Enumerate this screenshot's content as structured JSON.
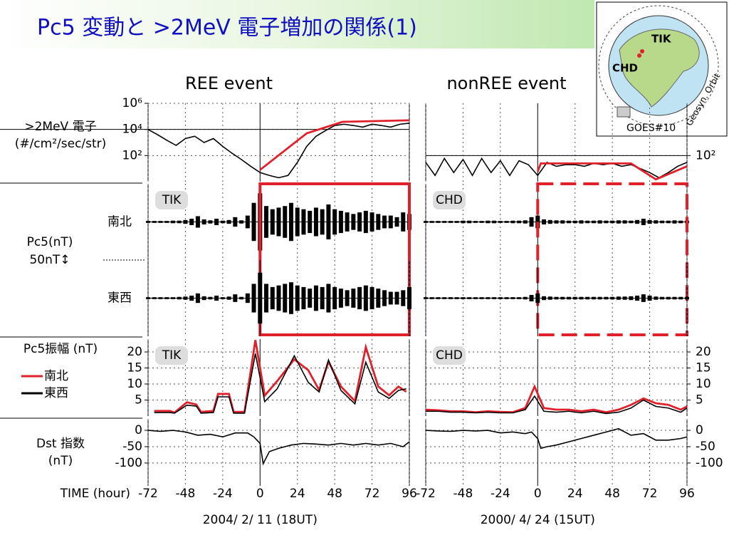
{
  "title": "Pc5 変動と >2MeV 電子増加の関係(1)",
  "pc5_label": [
    "Pc5(nT)",
    "50nT↕"
  ],
  "globe": {
    "stations": [
      "TIK",
      "CHD"
    ],
    "orbit": "Geosyn. Orbit",
    "satellite": "GOES#10"
  },
  "chart_data": [
    {
      "type": "line",
      "title": "REE event",
      "ylabel": [
        ">2MeV 電子",
        "(#/cm²/sec/str)"
      ],
      "log_scale": true,
      "grid": true,
      "xlim": [
        -72,
        96
      ],
      "xticks": [
        -72,
        -48,
        -24,
        0,
        24,
        48,
        72,
        96
      ],
      "ylim": [
        1,
        1000000
      ],
      "yticks": [
        {
          "value": 1000000,
          "label": "10⁶"
        },
        {
          "value": 10000,
          "label": "10⁴"
        },
        {
          "value": 100,
          "label": "10²"
        }
      ],
      "reference_line": 10000,
      "series": [
        {
          "color": "#000000",
          "x": [
            -72,
            -66,
            -60,
            -54,
            -48,
            -42,
            -36,
            -30,
            -24,
            -18,
            -12,
            -6,
            0,
            6,
            12,
            18,
            24,
            30,
            36,
            42,
            48,
            54,
            60,
            66,
            72,
            78,
            84,
            90,
            96
          ],
          "values": [
            10000,
            4000,
            1500,
            600,
            2000,
            3000,
            1000,
            2000,
            500,
            150,
            50,
            15,
            5,
            3,
            2,
            3,
            30,
            500,
            3000,
            8000,
            20000,
            25000,
            20000,
            15000,
            25000,
            20000,
            15000,
            25000,
            30000
          ]
        },
        {
          "color": "#e0202a",
          "x": [
            0,
            30,
            53,
            96
          ],
          "values": [
            8,
            5000,
            38000,
            50000
          ]
        }
      ]
    },
    {
      "type": "line",
      "title": "nonREE event",
      "log_scale": true,
      "grid": true,
      "xlim": [
        -72,
        96
      ],
      "xticks": [
        -72,
        -48,
        -24,
        0,
        24,
        48,
        72,
        96
      ],
      "ylim": [
        1,
        1000000
      ],
      "yticks": [
        {
          "value": 100,
          "label": "10²"
        }
      ],
      "reference_line": 100,
      "series": [
        {
          "color": "#000000",
          "x": [
            -72,
            -66,
            -60,
            -54,
            -48,
            -42,
            -36,
            -30,
            -24,
            -18,
            -12,
            -6,
            0,
            6,
            12,
            18,
            24,
            30,
            36,
            42,
            48,
            54,
            60,
            66,
            72,
            78,
            84,
            90,
            96
          ],
          "values": [
            30,
            3,
            60,
            5,
            50,
            3,
            60,
            5,
            40,
            3,
            40,
            20,
            3,
            30,
            15,
            20,
            20,
            15,
            25,
            20,
            25,
            15,
            20,
            10,
            5,
            2,
            5,
            15,
            30
          ]
        },
        {
          "color": "#e0202a",
          "x": [
            0,
            2,
            60,
            76,
            96
          ],
          "values": [
            6,
            25,
            25,
            1.5,
            15
          ]
        }
      ]
    },
    {
      "type": "waveform",
      "ylabel": "南北",
      "station": "TIK",
      "highlight": [
        0,
        96
      ],
      "highlight_style": "solid",
      "color": "#000000",
      "xlim": [
        -72,
        96
      ],
      "xticks": [
        -72,
        -48,
        -24,
        0,
        24,
        48,
        72,
        96
      ],
      "ylim": [
        -120,
        120
      ],
      "x": [
        -72,
        -68,
        -64,
        -60,
        -56,
        -52,
        -48,
        -44,
        -40,
        -36,
        -32,
        -28,
        -24,
        -20,
        -16,
        -12,
        -8,
        -4,
        0,
        4,
        8,
        12,
        16,
        20,
        24,
        28,
        32,
        36,
        40,
        44,
        48,
        52,
        56,
        60,
        64,
        68,
        72,
        76,
        80,
        84,
        88,
        92,
        96
      ],
      "values": [
        3,
        3,
        3,
        3,
        4,
        4,
        6,
        10,
        18,
        8,
        5,
        10,
        4,
        6,
        15,
        5,
        20,
        60,
        90,
        50,
        40,
        45,
        50,
        60,
        45,
        40,
        35,
        45,
        40,
        55,
        40,
        35,
        30,
        25,
        30,
        35,
        30,
        25,
        20,
        20,
        15,
        30,
        25
      ]
    },
    {
      "type": "waveform",
      "station": "CHD",
      "highlight": [
        0,
        96
      ],
      "highlight_style": "dashed",
      "color": "#000000",
      "xlim": [
        -72,
        96
      ],
      "xticks": [
        -72,
        -48,
        -24,
        0,
        24,
        48,
        72,
        96
      ],
      "ylim": [
        -120,
        120
      ],
      "x": [
        -72,
        -68,
        -64,
        -60,
        -56,
        -52,
        -48,
        -44,
        -40,
        -36,
        -32,
        -28,
        -24,
        -20,
        -16,
        -12,
        -8,
        -4,
        0,
        4,
        8,
        12,
        16,
        20,
        24,
        28,
        32,
        36,
        40,
        44,
        48,
        52,
        56,
        60,
        64,
        68,
        72,
        76,
        80,
        84,
        88,
        92,
        96
      ],
      "values": [
        3,
        3,
        3,
        3,
        3,
        3,
        4,
        4,
        3,
        3,
        4,
        4,
        3,
        3,
        4,
        4,
        5,
        15,
        20,
        8,
        6,
        5,
        5,
        4,
        4,
        5,
        4,
        4,
        5,
        4,
        4,
        5,
        5,
        4,
        6,
        10,
        6,
        5,
        4,
        4,
        5,
        4,
        4
      ]
    },
    {
      "type": "waveform",
      "ylabel": "東西",
      "color": "#000000",
      "xlim": [
        -72,
        96
      ],
      "xticks": [
        -72,
        -48,
        -24,
        0,
        24,
        48,
        72,
        96
      ],
      "ylim": [
        -120,
        120
      ],
      "x": [
        -72,
        -68,
        -64,
        -60,
        -56,
        -52,
        -48,
        -44,
        -40,
        -36,
        -32,
        -28,
        -24,
        -20,
        -16,
        -12,
        -8,
        -4,
        0,
        4,
        8,
        12,
        16,
        20,
        24,
        28,
        32,
        36,
        40,
        44,
        48,
        52,
        56,
        60,
        64,
        68,
        72,
        76,
        80,
        84,
        88,
        92,
        96
      ],
      "values": [
        3,
        3,
        3,
        3,
        3,
        4,
        5,
        8,
        15,
        6,
        4,
        8,
        3,
        5,
        12,
        4,
        15,
        45,
        80,
        45,
        35,
        40,
        45,
        50,
        40,
        35,
        30,
        40,
        35,
        45,
        35,
        30,
        25,
        30,
        35,
        40,
        35,
        30,
        25,
        20,
        20,
        25,
        35
      ]
    },
    {
      "type": "waveform",
      "color": "#000000",
      "xlim": [
        -72,
        96
      ],
      "xticks": [
        -72,
        -48,
        -24,
        0,
        24,
        48,
        72,
        96
      ],
      "ylim": [
        -120,
        120
      ],
      "x": [
        -72,
        -68,
        -64,
        -60,
        -56,
        -52,
        -48,
        -44,
        -40,
        -36,
        -32,
        -28,
        -24,
        -20,
        -16,
        -12,
        -8,
        -4,
        0,
        4,
        8,
        12,
        16,
        20,
        24,
        28,
        32,
        36,
        40,
        44,
        48,
        52,
        56,
        60,
        64,
        68,
        72,
        76,
        80,
        84,
        88,
        92,
        96
      ],
      "values": [
        3,
        3,
        3,
        3,
        3,
        3,
        3,
        3,
        3,
        3,
        3,
        3,
        3,
        3,
        3,
        3,
        4,
        10,
        15,
        6,
        5,
        4,
        4,
        4,
        4,
        4,
        4,
        4,
        4,
        4,
        4,
        5,
        5,
        6,
        8,
        12,
        8,
        5,
        4,
        4,
        4,
        4,
        4
      ]
    },
    {
      "type": "line",
      "ylabel": "Pc5振幅 (nT)",
      "station": "TIK",
      "legend": "left-outside",
      "grid": true,
      "xlim": [
        -72,
        96
      ],
      "xticks": [
        -72,
        -48,
        -24,
        0,
        24,
        48,
        72,
        96
      ],
      "ylim": [
        0,
        24
      ],
      "yticks": [
        5,
        10,
        15,
        20
      ],
      "x": [
        -68,
        -58,
        -55,
        -47,
        -41,
        -38,
        -30,
        -27,
        -20,
        -17,
        -10,
        -3,
        3,
        11,
        22,
        31,
        38,
        44,
        52,
        61,
        68,
        76,
        83,
        89,
        94
      ],
      "series": [
        {
          "name": "南北",
          "color": "#e0202a",
          "values": [
            1.6,
            1.6,
            1.1,
            4.3,
            3.6,
            1.3,
            1.6,
            6.9,
            6.9,
            1.3,
            1.3,
            23.7,
            6.4,
            10.9,
            17.7,
            14.3,
            8.1,
            17,
            9.2,
            4.7,
            21.5,
            9.2,
            6.5,
            9.2,
            7.6
          ]
        },
        {
          "name": "東西",
          "color": "#000000",
          "values": [
            1.1,
            1.1,
            0.9,
            3.4,
            3.1,
            0.9,
            1.1,
            6,
            6,
            0.9,
            0.9,
            19.5,
            4.5,
            8.5,
            18.8,
            10.5,
            7.5,
            17.5,
            8,
            3.8,
            16.8,
            7.5,
            5.5,
            8,
            8.5
          ]
        }
      ]
    },
    {
      "type": "line",
      "station": "CHD",
      "grid": true,
      "xlim": [
        -72,
        96
      ],
      "xticks": [
        -72,
        -48,
        -24,
        0,
        24,
        48,
        72,
        96
      ],
      "ylim": [
        0,
        24
      ],
      "yticks": [
        5,
        10,
        15,
        20
      ],
      "x": [
        -72,
        -64,
        -56,
        -48,
        -40,
        -32,
        -24,
        -16,
        -8,
        -2,
        4,
        12,
        20,
        28,
        36,
        44,
        52,
        60,
        68,
        76,
        84,
        92,
        96
      ],
      "series": [
        {
          "color": "#e0202a",
          "values": [
            2,
            1.8,
            1.5,
            1.5,
            1.2,
            1.5,
            1.3,
            1.2,
            2.5,
            9.2,
            2.5,
            2,
            2,
            1.5,
            2,
            1.2,
            2,
            3.5,
            5.5,
            4,
            3.5,
            2,
            3
          ]
        },
        {
          "color": "#000000",
          "values": [
            1.5,
            1.5,
            1.2,
            1.2,
            1,
            1.2,
            1,
            1,
            2,
            6.2,
            1.5,
            1.2,
            1.5,
            1,
            1.5,
            0.8,
            1.2,
            2.5,
            5,
            3,
            2.5,
            1.2,
            2.5
          ]
        }
      ]
    },
    {
      "type": "line",
      "ylabel": [
        "Dst 指数",
        "(nT)"
      ],
      "x_title": "TIME (hour)",
      "xlabel": "2004/ 2/ 11 (18UT)",
      "grid": true,
      "xlim": [
        -72,
        96
      ],
      "xticks": [
        -72,
        -48,
        -24,
        0,
        24,
        48,
        72,
        96
      ],
      "ylim": [
        -170,
        35
      ],
      "yticks": [
        0,
        -50,
        -100
      ],
      "x": [
        -72,
        -64,
        -56,
        -48,
        -40,
        -32,
        -24,
        -16,
        -8,
        -4,
        0,
        2,
        6,
        12,
        20,
        28,
        36,
        44,
        52,
        60,
        68,
        76,
        84,
        92,
        96
      ],
      "series": [
        {
          "color": "#000000",
          "values": [
            0,
            -3,
            0,
            -5,
            -15,
            -12,
            -20,
            -8,
            -8,
            -20,
            -40,
            -102,
            -65,
            -55,
            -45,
            -40,
            -42,
            -45,
            -40,
            -45,
            -40,
            -45,
            -40,
            -50,
            -35
          ]
        }
      ]
    },
    {
      "type": "line",
      "xlabel": "2000/ 4/ 24 (15UT)",
      "grid": true,
      "xlim": [
        -72,
        96
      ],
      "xticks": [
        -72,
        -48,
        -24,
        0,
        24,
        48,
        72,
        96
      ],
      "ylim": [
        -170,
        35
      ],
      "yticks": [
        0,
        -50,
        -100
      ],
      "x": [
        -72,
        -64,
        -56,
        -48,
        -40,
        -32,
        -24,
        -16,
        -8,
        -4,
        0,
        2,
        6,
        12,
        20,
        28,
        36,
        44,
        52,
        60,
        68,
        76,
        84,
        92,
        96
      ],
      "series": [
        {
          "color": "#000000",
          "values": [
            0,
            -2,
            -3,
            0,
            -2,
            0,
            -8,
            -5,
            -10,
            -5,
            -25,
            -55,
            -50,
            -45,
            -35,
            -25,
            -15,
            -5,
            5,
            -15,
            -10,
            -30,
            -30,
            -25,
            -20
          ]
        }
      ]
    }
  ]
}
